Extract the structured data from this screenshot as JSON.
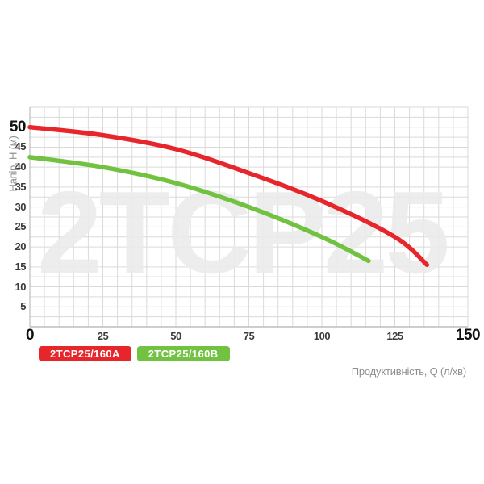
{
  "page": {
    "background": "#ffffff"
  },
  "palette": {
    "grid": "#dadada",
    "axis": "#bdbdbd",
    "tick": "#3a3a3a",
    "tick_emphasis": "#111111",
    "axis_title": "#8f8f8f",
    "watermark_color": "#ebebeb",
    "background": "#ffffff"
  },
  "chart_data": {
    "type": "line",
    "title": "",
    "watermark": "2TCP25",
    "xlabel": "Продуктивність, Q (л/хв)",
    "ylabel": "Напір, H (м)",
    "xlim": [
      0,
      150
    ],
    "ylim": [
      0,
      55
    ],
    "x_ticks": [
      0,
      25,
      50,
      75,
      100,
      125,
      150
    ],
    "y_ticks": [
      5,
      10,
      15,
      20,
      25,
      30,
      35,
      40,
      45,
      50
    ],
    "emphasized_x_ticks": [
      0,
      150
    ],
    "emphasized_y_ticks": [
      50
    ],
    "grid": {
      "on": true,
      "x_minor_step": 5,
      "y_minor_step": 2.5
    },
    "legend_position": "bottom-left",
    "series": [
      {
        "name": "2TCP25/160A",
        "color": "#e7262c",
        "points": [
          [
            0,
            50
          ],
          [
            25,
            48
          ],
          [
            50,
            44.5
          ],
          [
            75,
            38.5
          ],
          [
            100,
            31.5
          ],
          [
            125,
            22.5
          ],
          [
            136,
            15.5
          ]
        ]
      },
      {
        "name": "2TCP25/160B",
        "color": "#72c241",
        "points": [
          [
            0,
            42.5
          ],
          [
            25,
            40
          ],
          [
            50,
            36
          ],
          [
            75,
            30
          ],
          [
            100,
            22.5
          ],
          [
            116,
            16.5
          ]
        ]
      }
    ]
  }
}
